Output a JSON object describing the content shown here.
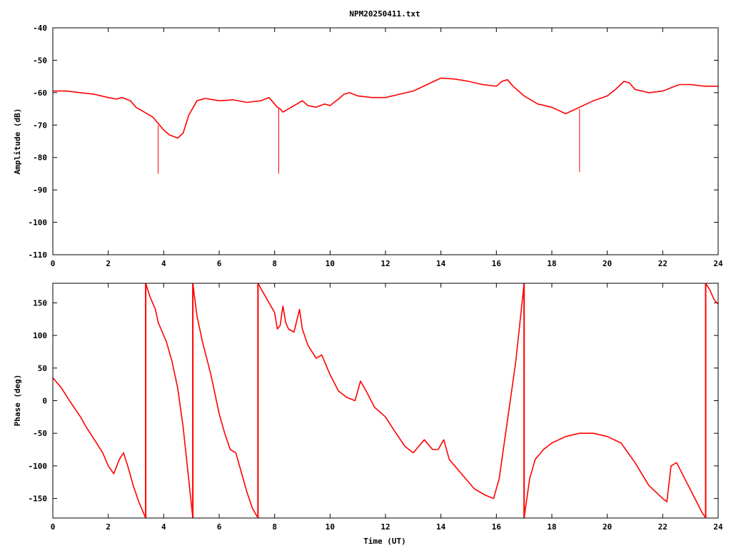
{
  "title": "NPM20250411.txt",
  "colors": {
    "series": "#ff0000",
    "axes": "#000000",
    "background": "#ffffff"
  },
  "chart_data": [
    {
      "type": "line",
      "title": "NPM20250411.txt",
      "xlabel": "",
      "ylabel": "Amplitude (dB)",
      "xlim": [
        0,
        24
      ],
      "ylim": [
        -110,
        -40
      ],
      "xticks": [
        "0",
        "2",
        "4",
        "6",
        "8",
        "10",
        "12",
        "14",
        "16",
        "18",
        "20",
        "22",
        "24"
      ],
      "yticks": [
        "-40",
        "-50",
        "-60",
        "-70",
        "-80",
        "-90",
        "-100",
        "-110"
      ],
      "grid": false,
      "legend": "none",
      "series": [
        {
          "x": [
            0,
            0.5,
            1.0,
            1.5,
            2.0,
            2.3,
            2.5,
            2.8,
            3.0,
            3.3,
            3.6,
            3.8,
            4.0,
            4.2,
            4.5,
            4.7,
            4.9,
            5.2,
            5.5,
            6.0,
            6.5,
            7.0,
            7.5,
            7.8,
            8.0,
            8.1,
            8.2,
            8.3,
            8.5,
            8.8,
            9.0,
            9.2,
            9.5,
            9.8,
            10.0,
            10.3,
            10.5,
            10.7,
            11.0,
            11.5,
            12.0,
            12.5,
            13.0,
            13.5,
            14.0,
            14.5,
            15.0,
            15.5,
            16.0,
            16.2,
            16.4,
            16.6,
            16.8,
            17.0,
            17.5,
            18.0,
            18.5,
            19.0,
            19.5,
            20.0,
            20.3,
            20.6,
            20.8,
            21.0,
            21.5,
            22.0,
            22.3,
            22.6,
            23.0,
            23.5,
            24.0
          ],
          "y": [
            -59.5,
            -59.5,
            -60,
            -60.5,
            -61.5,
            -62,
            -61.5,
            -62.5,
            -64.5,
            -66,
            -67.5,
            -69.5,
            -71.5,
            -73,
            -74,
            -72.5,
            -67,
            -62.5,
            -61.8,
            -62.5,
            -62.2,
            -63,
            -62.5,
            -61.5,
            -63.5,
            -64.5,
            -65,
            -66,
            -65,
            -63.5,
            -62.5,
            -64,
            -64.5,
            -63.5,
            -64,
            -62,
            -60.5,
            -60,
            -61,
            -61.5,
            -61.5,
            -60.5,
            -59.5,
            -57.5,
            -55.5,
            -55.8,
            -56.5,
            -57.5,
            -58,
            -56.5,
            -56,
            -58,
            -59.5,
            -61,
            -63.5,
            -64.5,
            -66.5,
            -64.5,
            -62.5,
            -61,
            -59,
            -56.5,
            -57,
            -59,
            -60,
            -59.5,
            -58.5,
            -57.5,
            -57.5,
            -58,
            -58
          ]
        }
      ],
      "spikes": [
        {
          "x": 3.8,
          "from": -70,
          "to": -85
        },
        {
          "x": 8.15,
          "from": -65,
          "to": -85
        },
        {
          "x": 19.0,
          "from": -65,
          "to": -84.5
        }
      ]
    },
    {
      "type": "line",
      "title": "",
      "xlabel": "Time (UT)",
      "ylabel": "Phase (deg)",
      "xlim": [
        0,
        24
      ],
      "ylim": [
        -180,
        180
      ],
      "xticks": [
        "0",
        "2",
        "4",
        "6",
        "8",
        "10",
        "12",
        "14",
        "16",
        "18",
        "20",
        "22",
        "24"
      ],
      "yticks": [
        "150",
        "100",
        "50",
        "0",
        "-50",
        "-100",
        "-150"
      ],
      "ytick_values": [
        150,
        100,
        50,
        0,
        -50,
        -100,
        -150
      ],
      "grid": false,
      "legend": "none",
      "series": [
        {
          "segments": [
            {
              "x": [
                0,
                0.3,
                0.6,
                1.0,
                1.2,
                1.5,
                1.8,
                2.0,
                2.2,
                2.4,
                2.55,
                2.7,
                2.9,
                3.1,
                3.3,
                3.35
              ],
              "y": [
                35,
                20,
                0,
                -25,
                -40,
                -60,
                -80,
                -100,
                -112,
                -90,
                -80,
                -100,
                -130,
                -155,
                -175,
                -180
              ]
            },
            {
              "x": [
                3.35,
                3.5,
                3.7,
                3.8,
                3.9,
                4.1,
                4.3,
                4.5,
                4.7,
                4.9,
                5.05
              ],
              "y": [
                180,
                160,
                140,
                120,
                110,
                90,
                60,
                20,
                -40,
                -120,
                -180
              ]
            },
            {
              "x": [
                5.05,
                5.2,
                5.4,
                5.7,
                6.0,
                6.2,
                6.4,
                6.6,
                6.8,
                7.0,
                7.2,
                7.4
              ],
              "y": [
                180,
                130,
                90,
                40,
                -20,
                -50,
                -75,
                -80,
                -110,
                -140,
                -165,
                -180
              ]
            },
            {
              "x": [
                7.4,
                7.6,
                7.8,
                8.0,
                8.1,
                8.2,
                8.3,
                8.4,
                8.5,
                8.7,
                8.9,
                9.0,
                9.2,
                9.5,
                9.7,
                10.0,
                10.3,
                10.6,
                10.9,
                11.1,
                11.3,
                11.6,
                12.0,
                12.3,
                12.7,
                13.0,
                13.4,
                13.7,
                13.9,
                14.1,
                14.3,
                14.8,
                15.2,
                15.6,
                15.9,
                16.1,
                16.4,
                16.7,
                16.9,
                17.0
              ],
              "y": [
                180,
                165,
                150,
                135,
                110,
                115,
                145,
                120,
                110,
                105,
                140,
                110,
                85,
                65,
                70,
                40,
                15,
                5,
                0,
                30,
                15,
                -10,
                -25,
                -45,
                -70,
                -80,
                -60,
                -75,
                -75,
                -60,
                -90,
                -115,
                -135,
                -145,
                -150,
                -120,
                -30,
                60,
                140,
                180
              ]
            },
            {
              "x": [
                17.0,
                17.2,
                17.4,
                17.7,
                18.0,
                18.5,
                19.0,
                19.5,
                20.0,
                20.5,
                21.0,
                21.5,
                22.0,
                22.15,
                22.3,
                22.5,
                22.8,
                23.1,
                23.4,
                23.55
              ],
              "y": [
                -180,
                -120,
                -90,
                -75,
                -65,
                -55,
                -50,
                -50,
                -55,
                -65,
                -95,
                -130,
                -150,
                -155,
                -100,
                -95,
                -120,
                -145,
                -170,
                -180
              ]
            },
            {
              "x": [
                23.55,
                23.7,
                23.85,
                24.0
              ],
              "y": [
                180,
                170,
                155,
                148
              ]
            }
          ]
        }
      ],
      "wrap_lines_x": [
        3.35,
        5.05,
        7.4,
        17.0,
        23.55
      ]
    }
  ]
}
